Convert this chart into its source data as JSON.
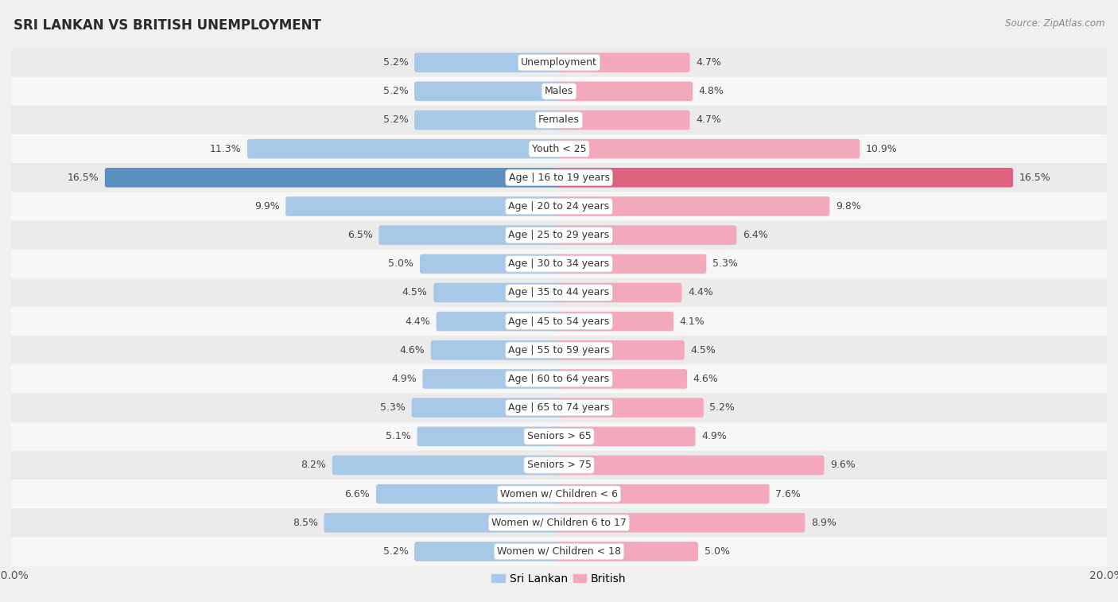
{
  "title": "SRI LANKAN VS BRITISH UNEMPLOYMENT",
  "source": "Source: ZipAtlas.com",
  "categories": [
    "Unemployment",
    "Males",
    "Females",
    "Youth < 25",
    "Age | 16 to 19 years",
    "Age | 20 to 24 years",
    "Age | 25 to 29 years",
    "Age | 30 to 34 years",
    "Age | 35 to 44 years",
    "Age | 45 to 54 years",
    "Age | 55 to 59 years",
    "Age | 60 to 64 years",
    "Age | 65 to 74 years",
    "Seniors > 65",
    "Seniors > 75",
    "Women w/ Children < 6",
    "Women w/ Children 6 to 17",
    "Women w/ Children < 18"
  ],
  "sri_lankan": [
    5.2,
    5.2,
    5.2,
    11.3,
    16.5,
    9.9,
    6.5,
    5.0,
    4.5,
    4.4,
    4.6,
    4.9,
    5.3,
    5.1,
    8.2,
    6.6,
    8.5,
    5.2
  ],
  "british": [
    4.7,
    4.8,
    4.7,
    10.9,
    16.5,
    9.8,
    6.4,
    5.3,
    4.4,
    4.1,
    4.5,
    4.6,
    5.2,
    4.9,
    9.6,
    7.6,
    8.9,
    5.0
  ],
  "max_val": 20.0,
  "sri_lankan_color": "#a8c8e8",
  "british_color": "#f4a8bc",
  "highlight_sl_color": "#5b8fbe",
  "highlight_br_color": "#e06080",
  "bar_height": 0.52,
  "row_bg_even": "#ebebeb",
  "row_bg_odd": "#f7f7f7",
  "label_fontsize": 9.0,
  "value_fontsize": 9.0,
  "title_fontsize": 12,
  "source_fontsize": 8.5,
  "fig_bg": "#f0f0f0"
}
